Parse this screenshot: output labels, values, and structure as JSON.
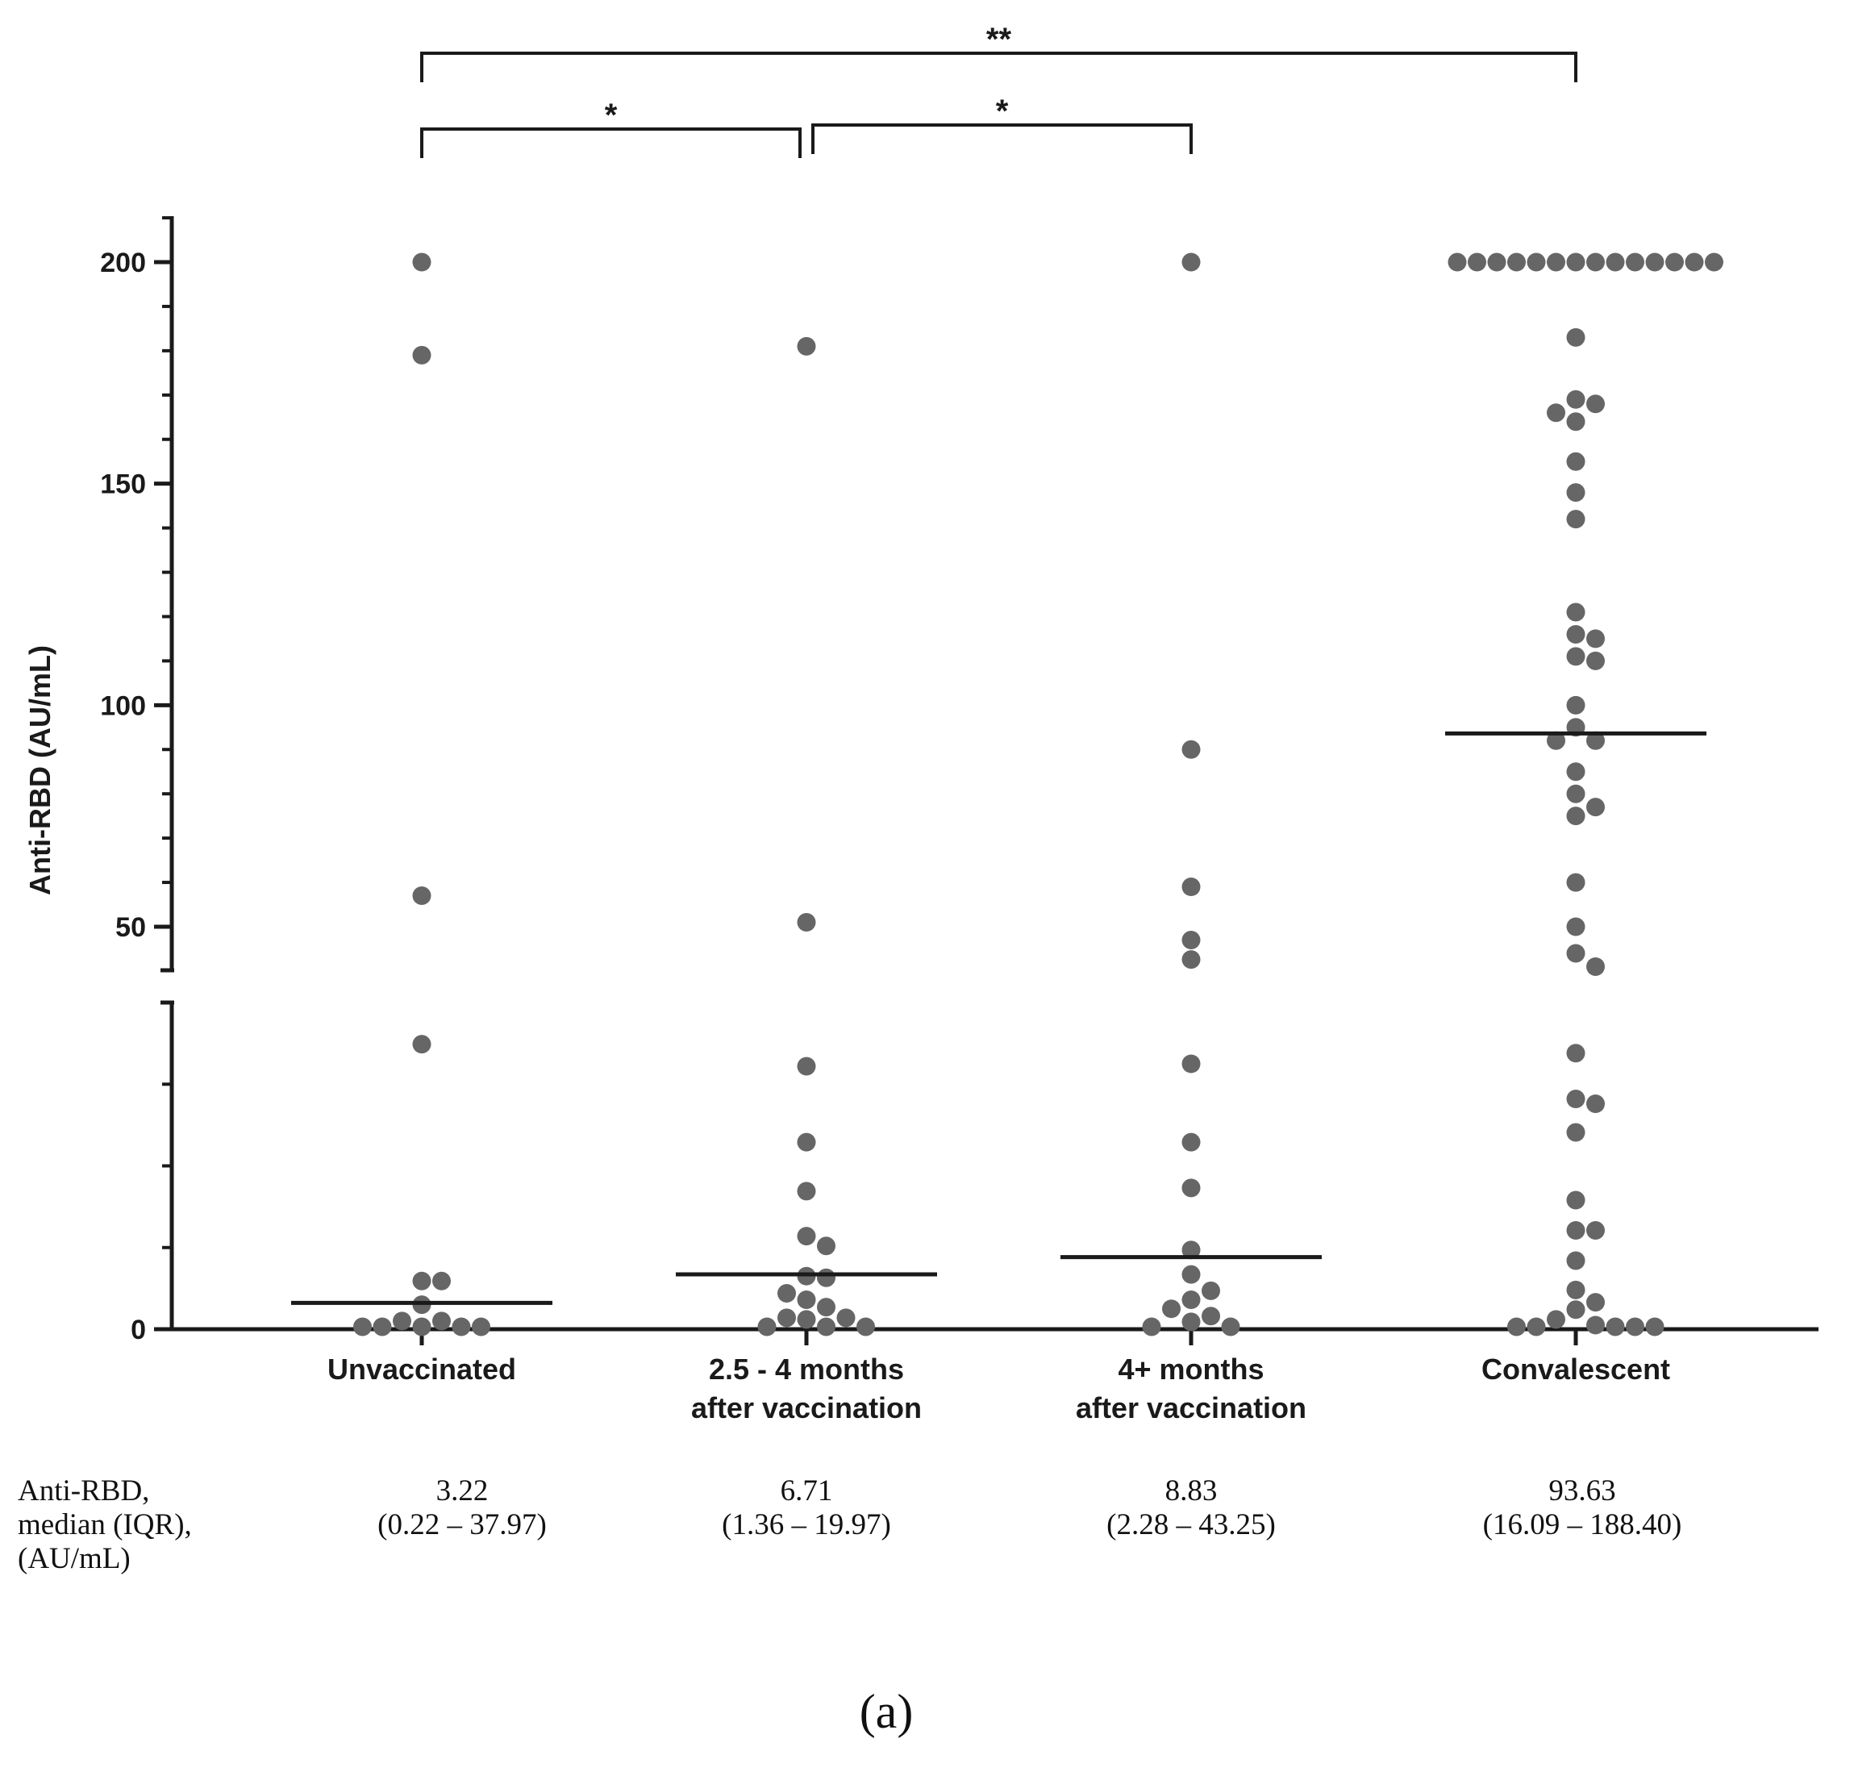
{
  "chart_data": {
    "type": "scatter",
    "ylabel": "Anti-RBD (AU/mL)",
    "yticks": [
      0,
      50,
      100,
      150,
      200
    ],
    "y_axis_broken": true,
    "categories": [
      "Unvaccinated",
      "2.5 - 4 months after vaccination",
      "4+ months after vaccination",
      "Convalescent"
    ],
    "category_lines": [
      [
        "Unvaccinated"
      ],
      [
        "2.5 - 4 months",
        "after vaccination"
      ],
      [
        "4+ months",
        "after vaccination"
      ],
      [
        "Convalescent"
      ]
    ],
    "medians": [
      3.22,
      6.71,
      8.83,
      93.63
    ],
    "series": [
      {
        "values": [
          200,
          179,
          57,
          34.9,
          5.9,
          5.9,
          3,
          1,
          1,
          0.3,
          0.3,
          0.3,
          0.3,
          0.3
        ]
      },
      {
        "values": [
          181,
          51,
          32.2,
          22.9,
          16.9,
          11.4,
          10.2,
          6.5,
          6.3,
          4.4,
          3.6,
          2.7,
          1.4,
          1.4,
          1.2,
          0.3,
          0.3,
          0.3
        ]
      },
      {
        "values": [
          200,
          90,
          59,
          47,
          42.6,
          32.5,
          22.9,
          17.3,
          9.7,
          6.7,
          4.7,
          3.6,
          2.5,
          1.6,
          0.9,
          0.3,
          0.3
        ]
      },
      {
        "values": [
          200,
          200,
          200,
          200,
          200,
          200,
          200,
          200,
          200,
          200,
          200,
          200,
          200,
          200,
          183,
          169,
          168,
          166,
          164,
          155,
          148,
          142,
          121,
          116,
          115,
          111,
          110,
          100,
          95,
          92,
          92,
          85,
          80,
          77,
          75,
          60,
          50,
          44,
          41,
          33.8,
          28.2,
          27.6,
          24.1,
          15.8,
          12.1,
          12.1,
          8.4,
          4.8,
          3.3,
          2.4,
          1.2,
          0.5,
          0.3,
          0.3,
          0.3,
          0.3,
          0.3
        ]
      }
    ],
    "significance": [
      {
        "from": 0,
        "to": 3,
        "label": "**"
      },
      {
        "from": 0,
        "to": 1,
        "label": "*"
      },
      {
        "from": 1,
        "to": 2,
        "label": "*"
      }
    ]
  },
  "table": {
    "row_label_lines": [
      "Anti-RBD,",
      "median (IQR),",
      "(AU/mL)"
    ],
    "cells": [
      {
        "median": "3.22",
        "iqr": "(0.22 – 37.97)"
      },
      {
        "median": "6.71",
        "iqr": "(1.36 – 19.97)"
      },
      {
        "median": "8.83",
        "iqr": "(2.28 – 43.25)"
      },
      {
        "median": "93.63",
        "iqr": "(16.09 – 188.40)"
      }
    ]
  },
  "panel_label": "(a)",
  "colors": {
    "points": "#666666",
    "axis": "#1a1a1a",
    "median_line": "#1a1a1a"
  }
}
